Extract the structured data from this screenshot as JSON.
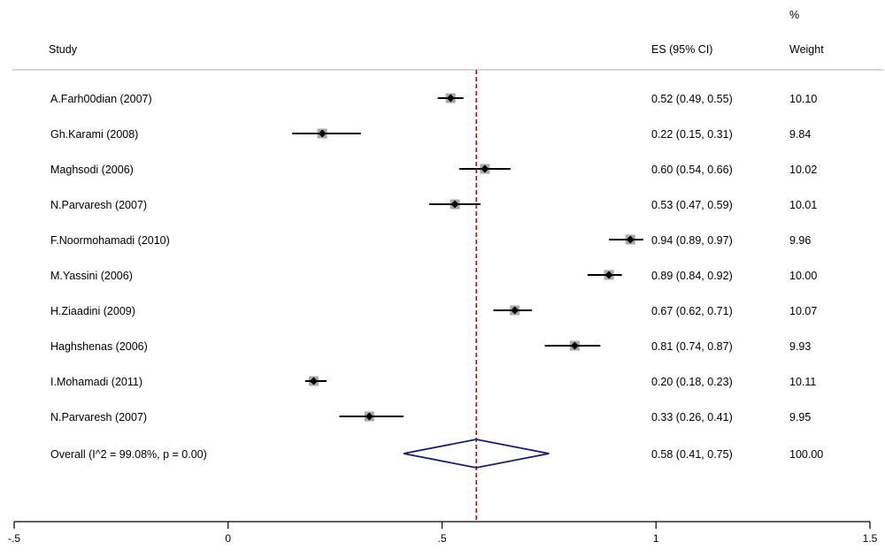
{
  "chart_data": {
    "type": "forest",
    "header": {
      "study": "Study",
      "es": "ES (95% CI)",
      "weight_pct": "%",
      "weight": "Weight"
    },
    "studies": [
      {
        "name": "A.Farh00dian (2007)",
        "es": 0.52,
        "lo": 0.49,
        "hi": 0.55,
        "es_text": "0.52 (0.49, 0.55)",
        "weight": "10.10"
      },
      {
        "name": "Gh.Karami (2008)",
        "es": 0.22,
        "lo": 0.15,
        "hi": 0.31,
        "es_text": "0.22 (0.15, 0.31)",
        "weight": "9.84"
      },
      {
        "name": "Maghsodi (2006)",
        "es": 0.6,
        "lo": 0.54,
        "hi": 0.66,
        "es_text": "0.60 (0.54, 0.66)",
        "weight": "10.02"
      },
      {
        "name": "N.Parvaresh (2007)",
        "es": 0.53,
        "lo": 0.47,
        "hi": 0.59,
        "es_text": "0.53 (0.47, 0.59)",
        "weight": "10.01"
      },
      {
        "name": "F.Noormohamadi (2010)",
        "es": 0.94,
        "lo": 0.89,
        "hi": 0.97,
        "es_text": "0.94 (0.89, 0.97)",
        "weight": "9.96"
      },
      {
        "name": "M.Yassini (2006)",
        "es": 0.89,
        "lo": 0.84,
        "hi": 0.92,
        "es_text": "0.89 (0.84, 0.92)",
        "weight": "10.00"
      },
      {
        "name": "H.Ziaadini (2009)",
        "es": 0.67,
        "lo": 0.62,
        "hi": 0.71,
        "es_text": "0.67 (0.62, 0.71)",
        "weight": "10.07"
      },
      {
        "name": "Haghshenas (2006)",
        "es": 0.81,
        "lo": 0.74,
        "hi": 0.87,
        "es_text": "0.81 (0.74, 0.87)",
        "weight": "9.93"
      },
      {
        "name": "I.Mohamadi (2011)",
        "es": 0.2,
        "lo": 0.18,
        "hi": 0.23,
        "es_text": "0.20 (0.18, 0.23)",
        "weight": "10.11"
      },
      {
        "name": "N.Parvaresh (2007)",
        "es": 0.33,
        "lo": 0.26,
        "hi": 0.41,
        "es_text": "0.33 (0.26, 0.41)",
        "weight": "9.95"
      }
    ],
    "overall": {
      "name": "Overall  (I^2 = 99.08%, p = 0.00)",
      "es": 0.58,
      "lo": 0.41,
      "hi": 0.75,
      "es_text": "0.58 (0.41, 0.75)",
      "weight": "100.00"
    },
    "x_ticks": [
      {
        "value": -0.5,
        "label": "-.5"
      },
      {
        "value": 0,
        "label": "0"
      },
      {
        "value": 0.5,
        "label": ".5"
      },
      {
        "value": 1,
        "label": "1"
      },
      {
        "value": 1.5,
        "label": "1.5"
      }
    ],
    "xlim": [
      -0.5,
      1.5
    ],
    "colors": {
      "ci_line": "#000000",
      "marker": "#000000",
      "weight_box": "#a9a9a9",
      "overall_diamond": "#1a1f5c",
      "overall_line": "#8b1a1a",
      "header_rule": "#bdbdbd"
    }
  }
}
